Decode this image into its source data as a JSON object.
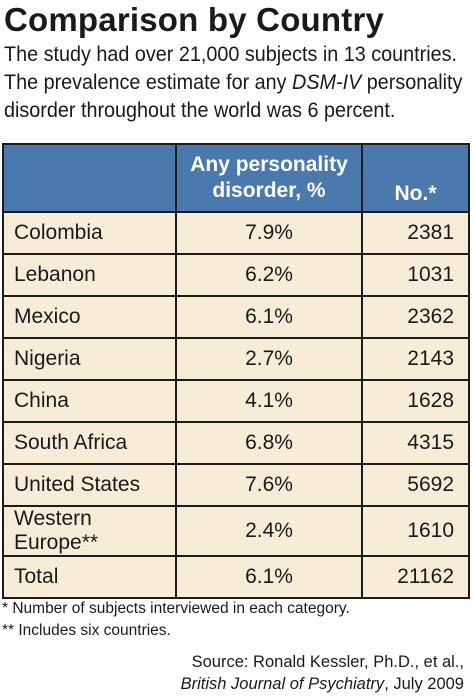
{
  "title": "Comparison by Country",
  "intro": {
    "part1": "The study had over 21,000 subjects in 13 countries. The prevalence estimate for any ",
    "italic": "DSM-IV",
    "part2": " personality disorder throughout the world was 6 percent."
  },
  "table": {
    "headers": [
      "",
      "Any personality disorder, %",
      "No.*"
    ],
    "rows": [
      {
        "country": "Colombia",
        "percent": "7.9%",
        "number": "2381"
      },
      {
        "country": "Lebanon",
        "percent": "6.2%",
        "number": "1031"
      },
      {
        "country": "Mexico",
        "percent": "6.1%",
        "number": "2362"
      },
      {
        "country": "Nigeria",
        "percent": "2.7%",
        "number": "2143"
      },
      {
        "country": "China",
        "percent": "4.1%",
        "number": "1628"
      },
      {
        "country": "South Africa",
        "percent": "6.8%",
        "number": "4315"
      },
      {
        "country": "United States",
        "percent": "7.6%",
        "number": "5692"
      },
      {
        "country": "Western Europe**",
        "percent": "2.4%",
        "number": "1610"
      },
      {
        "country": "Total",
        "percent": "6.1%",
        "number": "21162"
      }
    ]
  },
  "footnotes": [
    "* Number of subjects interviewed in each category.",
    "** Includes six countries."
  ],
  "source": {
    "line1": "Source: Ronald Kessler, Ph.D., et al.,",
    "journal": "British Journal of Psychiatry",
    "date": ", July 2009"
  },
  "colors": {
    "header_bg": "#4a79ad",
    "row_bg": "#f7ecd8"
  }
}
